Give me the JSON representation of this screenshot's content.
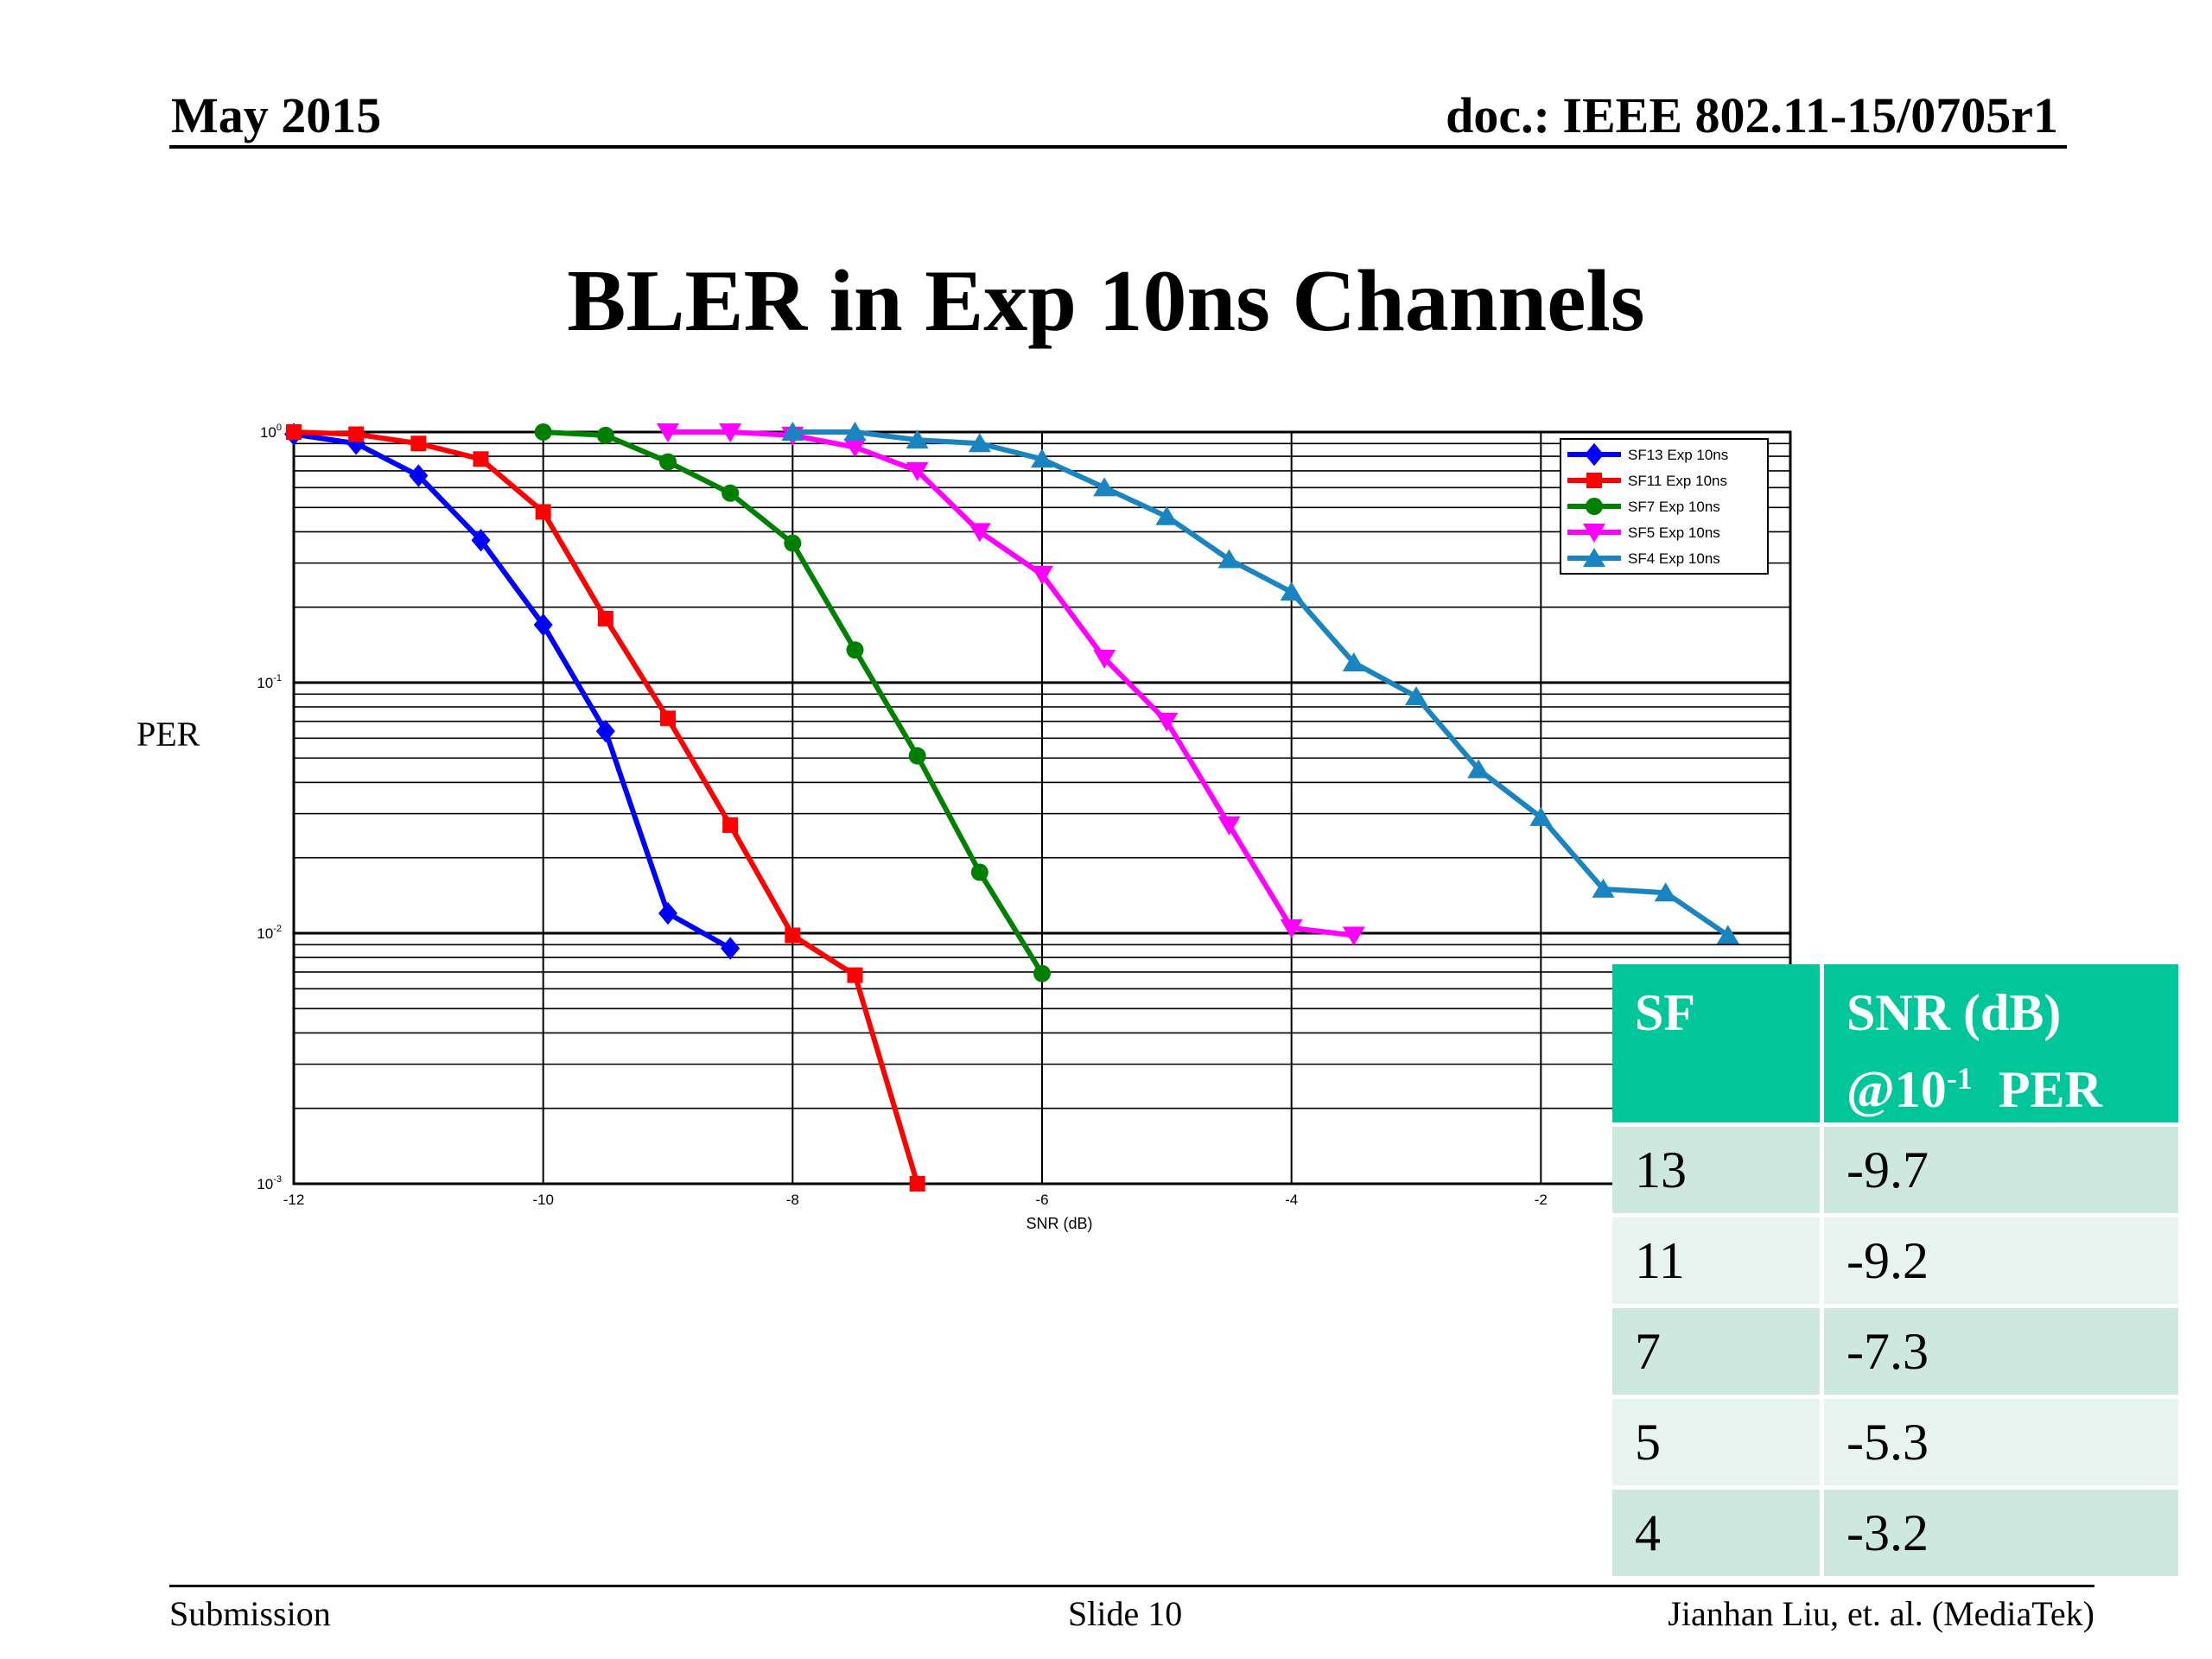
{
  "header": {
    "date": "May 2015",
    "doc": "doc.: IEEE 802.11-15/0705r1"
  },
  "slide_title": "BLER in Exp 10ns Channels",
  "chart_data": {
    "type": "line",
    "ylabel": "PER",
    "xlabel": "SNR (dB)",
    "xlim": [
      -12,
      0
    ],
    "ylim": [
      0.001,
      1
    ],
    "yscale": "log",
    "grid": true,
    "legend_position": "top-right",
    "x_ticks": [
      "-12",
      "-10",
      "-8",
      "-6",
      "-4",
      "-2"
    ],
    "y_ticks": [
      {
        "base": "10",
        "exp": "0",
        "value": 1
      },
      {
        "base": "10",
        "exp": "-1",
        "value": 0.1
      },
      {
        "base": "10",
        "exp": "-2",
        "value": 0.01
      },
      {
        "base": "10",
        "exp": "-3",
        "value": 0.001
      }
    ],
    "series": [
      {
        "name": "SF13 Exp 10ns",
        "color": "#0000ff",
        "marker": "diamond",
        "x": [
          -12,
          -11.5,
          -11,
          -10.5,
          -10,
          -9.5,
          -9,
          -8.5
        ],
        "y": [
          0.98,
          0.9,
          0.67,
          0.37,
          0.17,
          0.064,
          0.012,
          0.0087
        ]
      },
      {
        "name": "SF11 Exp 10ns",
        "color": "#ff0000",
        "marker": "square",
        "x": [
          -12,
          -11.5,
          -11,
          -10.5,
          -10,
          -9.5,
          -9,
          -8.5,
          -8,
          -7.5,
          -7
        ],
        "y": [
          1.0,
          0.98,
          0.9,
          0.78,
          0.48,
          0.18,
          0.072,
          0.027,
          0.0098,
          0.0068,
          0.001
        ]
      },
      {
        "name": "SF7 Exp 10ns",
        "color": "#008000",
        "marker": "circle",
        "x": [
          -10,
          -9.5,
          -9,
          -8.5,
          -8,
          -7.5,
          -7,
          -6.5,
          -6
        ],
        "y": [
          1.0,
          0.97,
          0.76,
          0.57,
          0.36,
          0.135,
          0.051,
          0.0175,
          0.0069
        ]
      },
      {
        "name": "SF5 Exp 10ns",
        "color": "#ff00ff",
        "marker": "triangle-down",
        "x": [
          -9,
          -8.5,
          -8,
          -7.5,
          -7,
          -6.5,
          -6,
          -5.5,
          -5,
          -4.5,
          -4,
          -3.5
        ],
        "y": [
          1.0,
          1.0,
          0.97,
          0.87,
          0.7,
          0.4,
          0.27,
          0.125,
          0.07,
          0.027,
          0.0105,
          0.0098
        ]
      },
      {
        "name": "SF4 Exp 10ns",
        "color": "#1a84c0",
        "marker": "triangle-up",
        "x": [
          -8,
          -7.5,
          -7,
          -6.5,
          -6,
          -5.5,
          -5,
          -4.5,
          -4,
          -3.5,
          -3,
          -2.5,
          -2,
          -1.5,
          -1,
          -0.5
        ],
        "y": [
          1.0,
          1.0,
          0.93,
          0.9,
          0.78,
          0.6,
          0.46,
          0.31,
          0.23,
          0.12,
          0.088,
          0.045,
          0.029,
          0.015,
          0.0145,
          0.0098
        ]
      }
    ]
  },
  "table": {
    "headers": {
      "sf": "SF",
      "snr_line1": "SNR (dB)",
      "snr_at": "@10",
      "snr_exp": "-1",
      "snr_per": "PER"
    },
    "rows": [
      {
        "sf": "13",
        "snr": "-9.7"
      },
      {
        "sf": "11",
        "snr": "-9.2"
      },
      {
        "sf": "7",
        "snr": "-7.3"
      },
      {
        "sf": "5",
        "snr": "-5.3"
      },
      {
        "sf": "4",
        "snr": "-3.2"
      }
    ]
  },
  "footer": {
    "left": "Submission",
    "center": "Slide 10",
    "right": "Jianhan Liu, et. al. (MediaTek)"
  }
}
